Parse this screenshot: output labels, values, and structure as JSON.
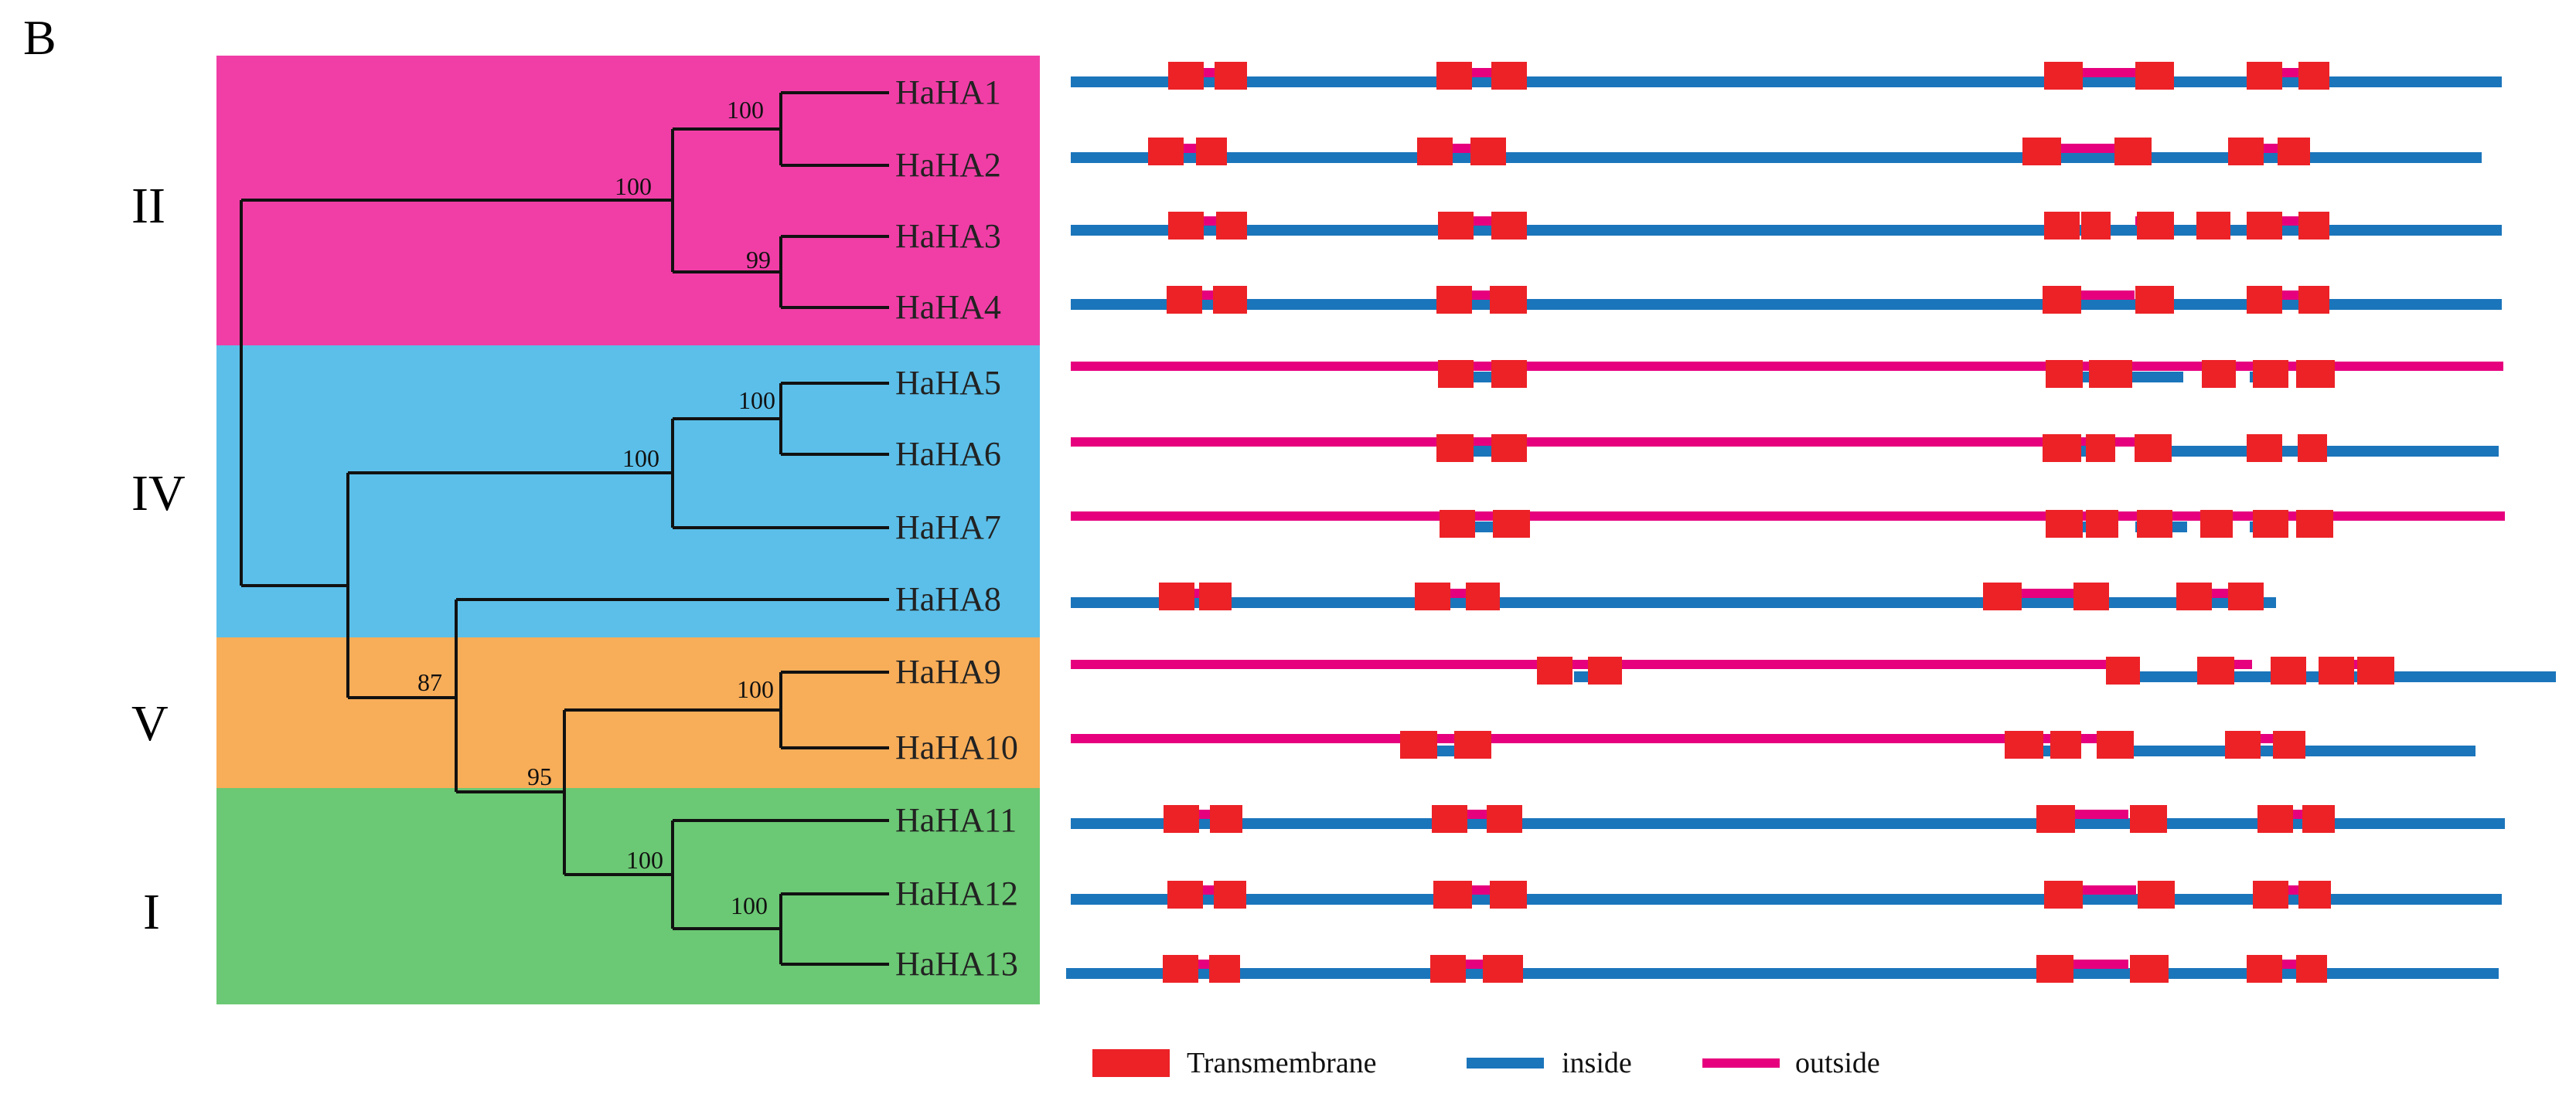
{
  "figure": {
    "panel_label": "B",
    "colors": {
      "transmembrane": "#ec2227",
      "inside": "#1b75bb",
      "outside": "#e6007e",
      "branch": "#111111"
    }
  },
  "clades": [
    {
      "label": "II",
      "color": "#f03ea6",
      "members": [
        "HaHA1",
        "HaHA2",
        "HaHA3",
        "HaHA4"
      ]
    },
    {
      "label": "IV",
      "color": "#5bbfe9",
      "members": [
        "HaHA5",
        "HaHA6",
        "HaHA7",
        "HaHA8"
      ]
    },
    {
      "label": "V",
      "color": "#f8ad58",
      "members": [
        "HaHA9",
        "HaHA10"
      ]
    },
    {
      "label": "I",
      "color": "#6bc874",
      "members": [
        "HaHA11",
        "HaHA12",
        "HaHA13"
      ]
    }
  ],
  "tree": {
    "leaves": [
      "HaHA1",
      "HaHA2",
      "HaHA3",
      "HaHA4",
      "HaHA5",
      "HaHA6",
      "HaHA7",
      "HaHA8",
      "HaHA9",
      "HaHA10",
      "HaHA11",
      "HaHA12",
      "HaHA13"
    ],
    "bootstrap_values": [
      "100",
      "100",
      "99",
      "100",
      "100",
      "87",
      "100",
      "95",
      "100",
      "100"
    ]
  },
  "legend": {
    "transmembrane": "Transmembrane",
    "inside": "inside",
    "outside": "outside"
  }
}
